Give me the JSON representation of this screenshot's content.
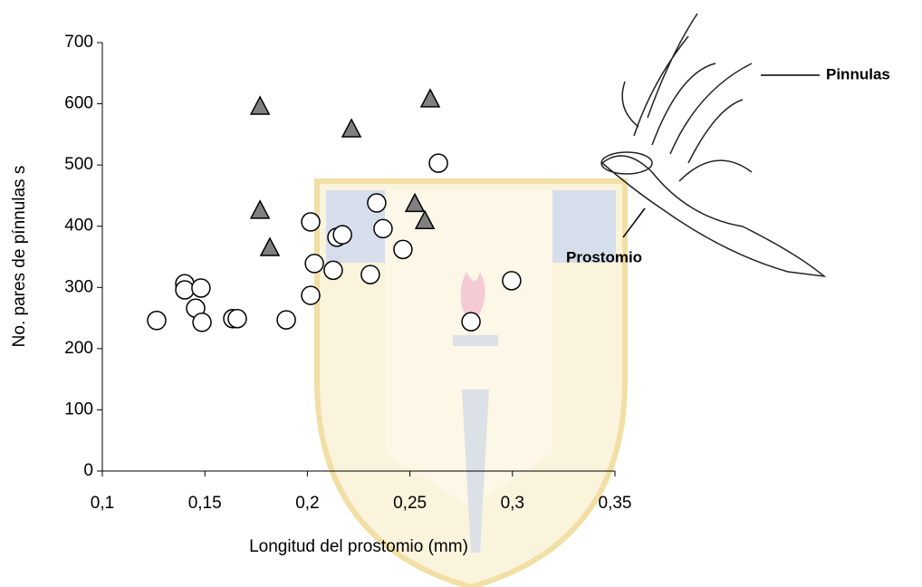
{
  "chart_data": {
    "type": "scatter",
    "xlabel": "Longitud del prostomio (mm)",
    "ylabel": "No. pares de pínnulas s",
    "annotations": [
      "Pinnulas",
      "Prostomio"
    ],
    "xlim": [
      0.1,
      0.35
    ],
    "xticks": [
      {
        "value": 0.1,
        "label": "0,1"
      },
      {
        "value": 0.15,
        "label": "0,15"
      },
      {
        "value": 0.2,
        "label": "0,2"
      },
      {
        "value": 0.25,
        "label": "0,25"
      },
      {
        "value": 0.3,
        "label": "0,3"
      },
      {
        "value": 0.35,
        "label": "0,35"
      }
    ],
    "ylim": [
      0,
      700
    ],
    "yticks": [
      0,
      100,
      200,
      300,
      400,
      500,
      600,
      700
    ],
    "series": [
      {
        "marker": "circle",
        "color": "#ffffff",
        "x": [
          0.1265,
          0.1402,
          0.1402,
          0.1481,
          0.1455,
          0.1486,
          0.1636,
          0.1658,
          0.1897,
          0.2016,
          0.2016,
          0.2034,
          0.2126,
          0.2144,
          0.2171,
          0.2307,
          0.2338,
          0.2369,
          0.2466,
          0.2639,
          0.2798,
          0.2996
        ],
        "values": [
          246,
          306,
          296,
          299,
          266,
          243,
          249,
          249,
          247,
          407,
          287,
          339,
          328,
          382,
          386,
          321,
          438,
          396,
          362,
          503,
          244,
          311
        ]
      },
      {
        "marker": "triangle",
        "color": "#808080",
        "x": [
          0.1769,
          0.1769,
          0.1817,
          0.2215,
          0.2599,
          0.2524,
          0.2573
        ],
        "values": [
          595,
          425,
          364,
          558,
          607,
          436,
          408
        ]
      }
    ]
  }
}
